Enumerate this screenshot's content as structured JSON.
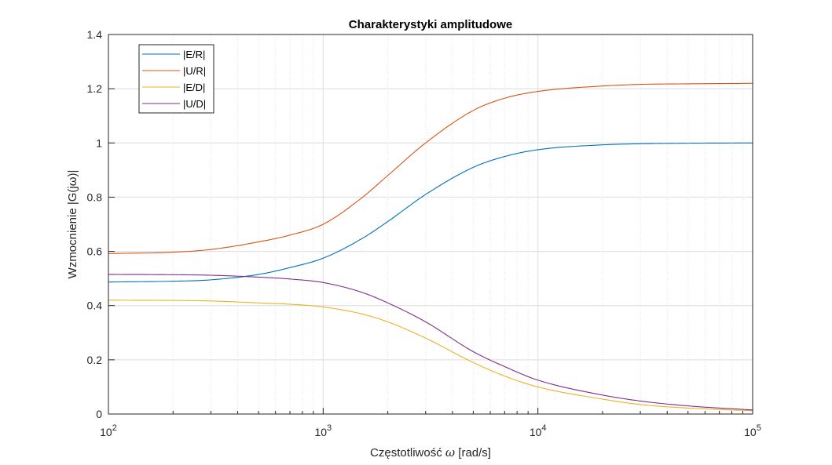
{
  "chart_data": {
    "type": "line",
    "title": "Charakterystyki amplitudowe",
    "xlabel": "Częstotliwość ω [rad/s]",
    "xlabel_parts": {
      "pre": "Częstotliwość ",
      "sym": "ω",
      "post": " [rad/s]"
    },
    "ylabel": "Wzmocnienie |G(jω)|",
    "xscale": "log",
    "xlim": [
      100,
      100000
    ],
    "ylim": [
      0,
      1.4
    ],
    "grid": true,
    "minor_grid_x": true,
    "legend_position": "top-left",
    "x_ticks": [
      {
        "base": "10",
        "exp": "2"
      },
      {
        "base": "10",
        "exp": "3"
      },
      {
        "base": "10",
        "exp": "4"
      },
      {
        "base": "10",
        "exp": "5"
      }
    ],
    "y_ticks": [
      "0",
      "0.2",
      "0.4",
      "0.6",
      "0.8",
      "1",
      "1.2",
      "1.4"
    ],
    "y_tick_values": [
      0,
      0.2,
      0.4,
      0.6,
      0.8,
      1.0,
      1.2,
      1.4
    ],
    "x": [
      100,
      200,
      300,
      500,
      700,
      1000,
      1500,
      2000,
      3000,
      5000,
      7000,
      10000,
      20000,
      30000,
      50000,
      100000
    ],
    "series": [
      {
        "name": "|E/R|",
        "color": "#0072BD",
        "values": [
          0.487,
          0.49,
          0.495,
          0.515,
          0.54,
          0.575,
          0.645,
          0.71,
          0.81,
          0.91,
          0.95,
          0.975,
          0.993,
          0.997,
          0.999,
          1.0
        ]
      },
      {
        "name": "|U/R|",
        "color": "#D95319",
        "values": [
          0.592,
          0.597,
          0.607,
          0.635,
          0.66,
          0.7,
          0.795,
          0.88,
          1.0,
          1.12,
          1.165,
          1.19,
          1.21,
          1.216,
          1.218,
          1.22
        ]
      },
      {
        "name": "|E/D|",
        "color": "#EDB120",
        "values": [
          0.42,
          0.419,
          0.417,
          0.41,
          0.405,
          0.395,
          0.37,
          0.34,
          0.28,
          0.19,
          0.14,
          0.1,
          0.055,
          0.035,
          0.022,
          0.012
        ]
      },
      {
        "name": "|U/D|",
        "color": "#7E2F8E",
        "values": [
          0.515,
          0.514,
          0.512,
          0.505,
          0.498,
          0.485,
          0.45,
          0.41,
          0.34,
          0.23,
          0.175,
          0.125,
          0.07,
          0.048,
          0.03,
          0.015
        ]
      }
    ]
  }
}
